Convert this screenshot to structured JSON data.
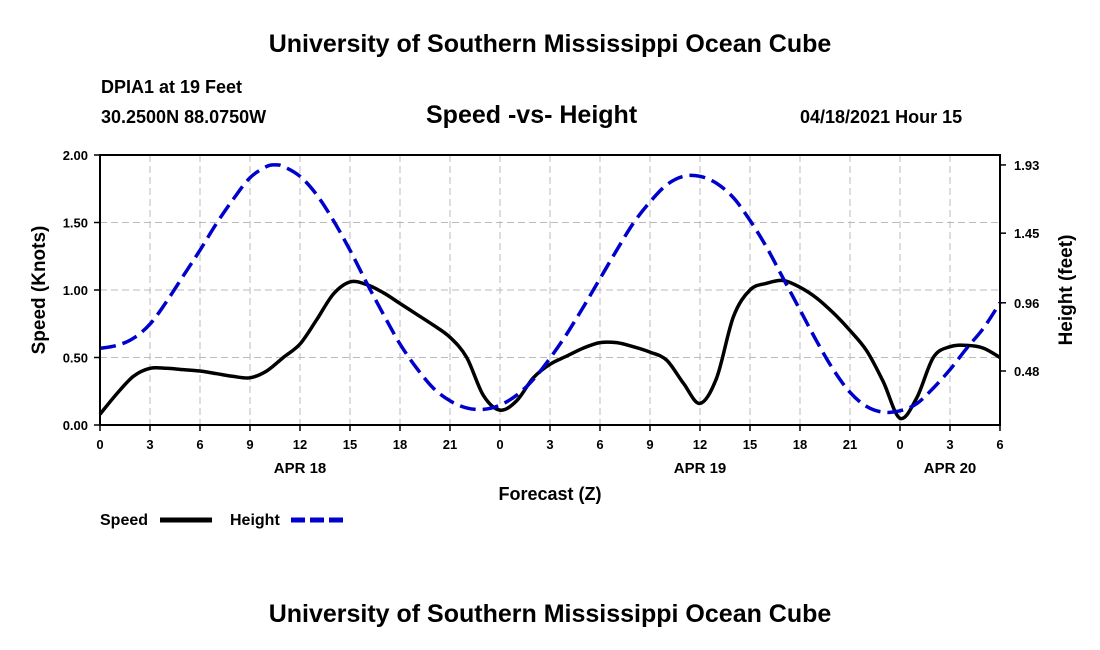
{
  "header": {
    "title": "University of Southern Mississippi Ocean Cube",
    "station": "DPIA1 at 19 Feet",
    "coords": "30.2500N  88.0750W",
    "chart_title": "Speed -vs- Height",
    "datetime": "04/18/2021 Hour 15"
  },
  "footer": {
    "title": "University of Southern Mississippi Ocean Cube"
  },
  "colors": {
    "speed": "#000000",
    "height": "#0000cc",
    "grid": "#bbbbbb"
  },
  "chart_data": {
    "type": "line",
    "title": "Speed -vs- Height",
    "xlabel": "Forecast (Z)",
    "ylabel": "Speed (Knots)",
    "y2label": "Height (feet)",
    "xlim": [
      0,
      54
    ],
    "ylim": [
      0,
      2.0
    ],
    "y2lim": [
      0.1,
      2.0
    ],
    "grid": true,
    "x_tick_positions": [
      0,
      3,
      6,
      9,
      12,
      15,
      18,
      21,
      24,
      27,
      30,
      33,
      36,
      39,
      42,
      45,
      48,
      51,
      54
    ],
    "x_tick_labels": [
      "0",
      "3",
      "6",
      "9",
      "12",
      "15",
      "18",
      "21",
      "0",
      "3",
      "6",
      "9",
      "12",
      "15",
      "18",
      "21",
      "0",
      "3",
      "6"
    ],
    "y_ticks": [
      0.0,
      0.5,
      1.0,
      1.5,
      2.0
    ],
    "y_tick_labels": [
      "0.00",
      "0.50",
      "1.00",
      "1.50",
      "2.00"
    ],
    "y2_ticks": [
      0.48,
      0.96,
      1.45,
      1.93
    ],
    "y2_tick_labels": [
      "0.48",
      "0.96",
      "1.45",
      "1.93"
    ],
    "date_labels": [
      {
        "x": 12,
        "label": "APR 18"
      },
      {
        "x": 36,
        "label": "APR 19"
      },
      {
        "x": 51,
        "label": "APR 20"
      }
    ],
    "legend": [
      {
        "name": "Speed",
        "style": "solid"
      },
      {
        "name": "Height",
        "style": "dashed"
      }
    ],
    "legend_position": "bottom-left",
    "series": [
      {
        "name": "Speed",
        "axis": "left",
        "style": "solid",
        "x": [
          0,
          1,
          2,
          3,
          4,
          5,
          6,
          7,
          8,
          9,
          10,
          11,
          12,
          13,
          14,
          15,
          16,
          17,
          18,
          19,
          20,
          21,
          22,
          23,
          24,
          25,
          26,
          27,
          28,
          29,
          30,
          31,
          32,
          33,
          34,
          35,
          36,
          37,
          38,
          39,
          40,
          41,
          42,
          43,
          44,
          45,
          46,
          47,
          48,
          49,
          50,
          51,
          52,
          53,
          54
        ],
        "y": [
          0.08,
          0.23,
          0.36,
          0.42,
          0.42,
          0.41,
          0.4,
          0.38,
          0.36,
          0.35,
          0.4,
          0.5,
          0.6,
          0.78,
          0.97,
          1.06,
          1.04,
          0.98,
          0.9,
          0.82,
          0.74,
          0.65,
          0.5,
          0.22,
          0.11,
          0.18,
          0.35,
          0.45,
          0.51,
          0.57,
          0.61,
          0.61,
          0.58,
          0.54,
          0.48,
          0.31,
          0.16,
          0.35,
          0.8,
          1.0,
          1.05,
          1.07,
          1.02,
          0.94,
          0.83,
          0.7,
          0.55,
          0.32,
          0.05,
          0.2,
          0.5,
          0.58,
          0.59,
          0.57,
          0.5
        ]
      },
      {
        "name": "Height",
        "axis": "right",
        "style": "dashed",
        "x": [
          0,
          1,
          2,
          3,
          4,
          5,
          6,
          7,
          8,
          9,
          10,
          10.5,
          11,
          12,
          13,
          14,
          15,
          16,
          17,
          18,
          19,
          20,
          21,
          22,
          23,
          24,
          25,
          26,
          27,
          28,
          29,
          30,
          31,
          32,
          33,
          34,
          35,
          36,
          37,
          38,
          39,
          40,
          41,
          42,
          43,
          44,
          45,
          46,
          47,
          48,
          49,
          50,
          51,
          52,
          53,
          54
        ],
        "y": [
          0.64,
          0.66,
          0.71,
          0.81,
          0.97,
          1.15,
          1.33,
          1.52,
          1.69,
          1.84,
          1.92,
          1.93,
          1.92,
          1.85,
          1.72,
          1.54,
          1.33,
          1.1,
          0.88,
          0.67,
          0.5,
          0.36,
          0.27,
          0.22,
          0.21,
          0.24,
          0.31,
          0.42,
          0.57,
          0.74,
          0.93,
          1.13,
          1.33,
          1.52,
          1.67,
          1.79,
          1.85,
          1.85,
          1.8,
          1.7,
          1.54,
          1.35,
          1.13,
          0.91,
          0.69,
          0.49,
          0.33,
          0.23,
          0.19,
          0.2,
          0.25,
          0.36,
          0.49,
          0.64,
          0.78,
          0.96
        ]
      }
    ]
  }
}
